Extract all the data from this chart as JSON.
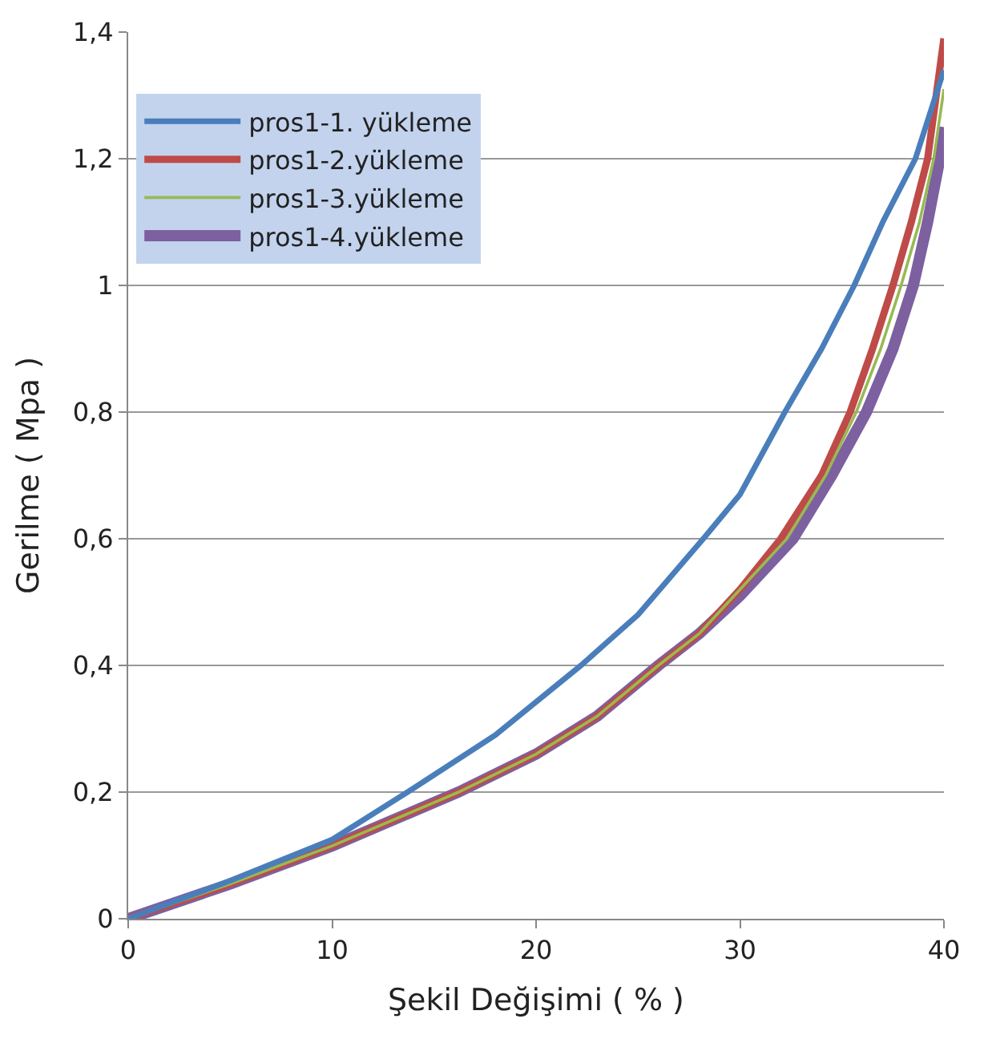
{
  "chart_data": {
    "type": "line",
    "xlabel": "Şekil Değişimi ( % )",
    "ylabel": "Gerilme ( Mpa )",
    "xlim": [
      0,
      40
    ],
    "xticks": [
      0,
      10,
      20,
      30,
      40
    ],
    "ylim": [
      0,
      1.4
    ],
    "yticks": [
      0,
      {
        "value": 0.2,
        "label": "0,2"
      },
      {
        "value": 0.4,
        "label": "0,4"
      },
      {
        "value": 0.6,
        "label": "0,6"
      },
      {
        "value": 0.8,
        "label": "0,8"
      },
      1,
      {
        "value": 1.2,
        "label": "1,2"
      },
      {
        "value": 1.4,
        "label": "1,4"
      }
    ],
    "grid": "y",
    "legend": "top left",
    "marker": "none",
    "line_style": "solid",
    "series": [
      {
        "name": "pros1-1. yükleme",
        "color": "#4a7ebb",
        "x": [
          0,
          5,
          10,
          13.7,
          18,
          22.2,
          25,
          28.2,
          30,
          32.2,
          34,
          35.6,
          37,
          38.6,
          40
        ],
        "values": [
          0,
          0.06,
          0.125,
          0.2,
          0.29,
          0.4,
          0.48,
          0.6,
          0.67,
          0.8,
          0.9,
          1.0,
          1.1,
          1.2,
          1.34
        ]
      },
      {
        "name": "pros1-2.yükleme",
        "color": "#be4b48",
        "x": [
          0,
          5,
          10,
          16.2,
          20,
          23,
          26,
          28,
          30,
          32,
          34,
          35.4,
          36.5,
          37.5,
          38.4,
          39.2,
          40
        ],
        "values": [
          0,
          0.055,
          0.115,
          0.2,
          0.26,
          0.32,
          0.4,
          0.45,
          0.52,
          0.6,
          0.7,
          0.8,
          0.9,
          1.0,
          1.1,
          1.2,
          1.39
        ]
      },
      {
        "name": "pros1-3.yükleme",
        "color": "#98b954",
        "x": [
          0,
          5,
          10,
          16.2,
          20,
          23,
          26,
          28,
          30,
          32.3,
          34.2,
          35.7,
          36.9,
          37.9,
          38.8,
          39.5,
          40
        ],
        "values": [
          0,
          0.055,
          0.115,
          0.2,
          0.26,
          0.32,
          0.4,
          0.45,
          0.52,
          0.6,
          0.7,
          0.8,
          0.9,
          1.0,
          1.1,
          1.2,
          1.31
        ]
      },
      {
        "name": "pros1-4.yükleme",
        "color": "#7d60a0",
        "x": [
          0,
          5,
          10,
          16.2,
          20,
          23,
          26,
          28,
          30,
          32.6,
          34.5,
          36.2,
          37.5,
          38.5,
          39.2,
          39.8,
          40
        ],
        "values": [
          0,
          0.055,
          0.115,
          0.2,
          0.26,
          0.32,
          0.4,
          0.45,
          0.51,
          0.6,
          0.7,
          0.8,
          0.9,
          1.0,
          1.1,
          1.2,
          1.25
        ]
      }
    ]
  }
}
